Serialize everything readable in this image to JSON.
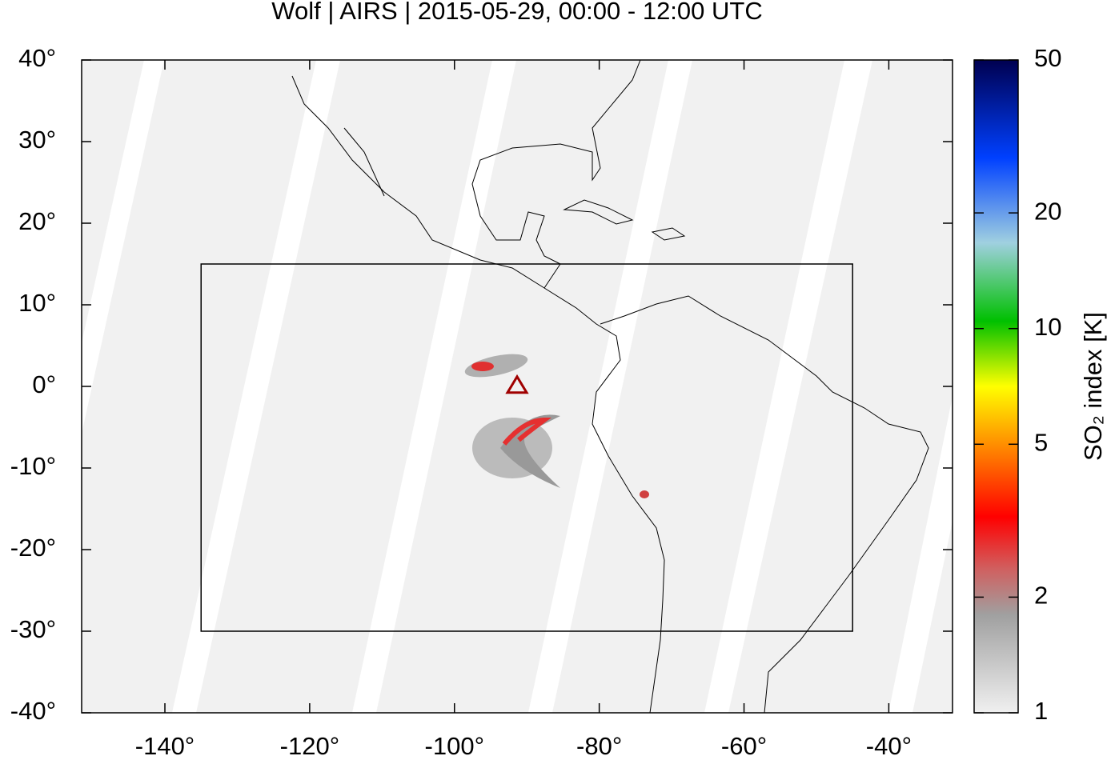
{
  "chart_data": {
    "type": "map",
    "title": "Wolf | AIRS | 2015-05-29, 00:00 - 12:00 UTC",
    "xlim": [
      -151.5,
      -31.2
    ],
    "ylim": [
      -40,
      40
    ],
    "xticks": [
      {
        "value": -140,
        "label": "-140°"
      },
      {
        "value": -120,
        "label": "-120°"
      },
      {
        "value": -100,
        "label": "-100°"
      },
      {
        "value": -80,
        "label": "-80°"
      },
      {
        "value": -60,
        "label": "-60°"
      },
      {
        "value": -40,
        "label": "-40°"
      }
    ],
    "yticks": [
      {
        "value": 40,
        "label": "40°"
      },
      {
        "value": 30,
        "label": "30°"
      },
      {
        "value": 20,
        "label": "20°"
      },
      {
        "value": 10,
        "label": "10°"
      },
      {
        "value": 0,
        "label": "0°"
      },
      {
        "value": -10,
        "label": "-10°"
      },
      {
        "value": -20,
        "label": "-20°"
      },
      {
        "value": -30,
        "label": "-30°"
      },
      {
        "value": -40,
        "label": "-40°"
      }
    ],
    "region": {
      "lon": [
        -135,
        -45
      ],
      "lat": [
        -30,
        15
      ]
    },
    "volcano": {
      "lon": -91.35,
      "lat": 0.02
    },
    "colorbar": {
      "label": "SO₂ index [K]",
      "log": true,
      "lim": [
        1,
        50
      ],
      "ticks": [
        1,
        2,
        5,
        10,
        20,
        50
      ]
    }
  }
}
